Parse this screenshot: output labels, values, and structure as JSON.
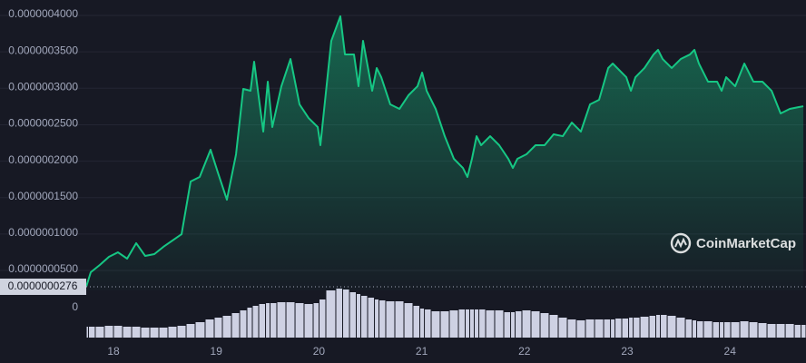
{
  "chart_data": {
    "type": "line",
    "watermark": "CoinMarketCap",
    "x": [
      17.735,
      17.779,
      17.867,
      17.956,
      18.044,
      18.133,
      18.221,
      18.309,
      18.398,
      18.486,
      18.574,
      18.663,
      18.751,
      18.839,
      18.945,
      19.016,
      19.104,
      19.193,
      19.263,
      19.334,
      19.369,
      19.458,
      19.502,
      19.546,
      19.634,
      19.723,
      19.811,
      19.899,
      19.988,
      20.014,
      20.12,
      20.208,
      20.253,
      20.341,
      20.385,
      20.429,
      20.518,
      20.562,
      20.606,
      20.694,
      20.783,
      20.871,
      20.959,
      21.004,
      21.048,
      21.136,
      21.224,
      21.313,
      21.401,
      21.445,
      21.489,
      21.534,
      21.578,
      21.666,
      21.754,
      21.843,
      21.887,
      21.931,
      22.019,
      22.108,
      22.196,
      22.284,
      22.373,
      22.461,
      22.549,
      22.638,
      22.726,
      22.815,
      22.859,
      22.903,
      22.991,
      23.036,
      23.08,
      23.168,
      23.256,
      23.3,
      23.345,
      23.433,
      23.521,
      23.61,
      23.654,
      23.698,
      23.786,
      23.875,
      23.919,
      23.963,
      24.051,
      24.14,
      24.228,
      24.316,
      24.405,
      24.493,
      24.582,
      24.67,
      24.714
    ],
    "series": [
      {
        "color": "#16c784",
        "values": [
          2.76e-08,
          4.75e-08,
          5.75e-08,
          6.87e-08,
          7.49e-08,
          6.62e-08,
          8.74e-08,
          6.99e-08,
          7.24e-08,
          8.24e-08,
          9.11e-08,
          9.98e-08,
          1.721e-07,
          1.783e-07,
          2.157e-07,
          1.845e-07,
          1.471e-07,
          2.094e-07,
          2.991e-07,
          2.966e-07,
          3.365e-07,
          2.406e-07,
          3.091e-07,
          2.468e-07,
          3.028e-07,
          3.402e-07,
          2.779e-07,
          2.592e-07,
          2.468e-07,
          2.219e-07,
          3.651e-07,
          3.988e-07,
          3.464e-07,
          3.464e-07,
          3.028e-07,
          3.651e-07,
          2.966e-07,
          3.278e-07,
          3.153e-07,
          2.779e-07,
          2.717e-07,
          2.904e-07,
          3.028e-07,
          3.215e-07,
          2.966e-07,
          2.717e-07,
          2.343e-07,
          2.032e-07,
          1.907e-07,
          1.783e-07,
          2.032e-07,
          2.343e-07,
          2.219e-07,
          2.343e-07,
          2.219e-07,
          2.032e-07,
          1.907e-07,
          2.032e-07,
          2.094e-07,
          2.219e-07,
          2.219e-07,
          2.368e-07,
          2.343e-07,
          2.53e-07,
          2.406e-07,
          2.779e-07,
          2.842e-07,
          3.278e-07,
          3.34e-07,
          3.278e-07,
          3.153e-07,
          2.966e-07,
          3.153e-07,
          3.278e-07,
          3.464e-07,
          3.527e-07,
          3.402e-07,
          3.278e-07,
          3.402e-07,
          3.464e-07,
          3.527e-07,
          3.34e-07,
          3.091e-07,
          3.091e-07,
          2.966e-07,
          3.153e-07,
          3.028e-07,
          3.34e-07,
          3.091e-07,
          3.091e-07,
          2.966e-07,
          2.655e-07,
          2.717e-07,
          2.742e-07,
          2.754e-07
        ]
      },
      {
        "type": "bar",
        "axis": "y2",
        "color": "#d8dbee",
        "values": [
          12,
          12,
          12,
          13,
          13,
          12,
          12,
          11,
          11,
          11,
          12,
          13,
          15,
          17,
          20,
          22,
          24,
          27,
          30,
          33,
          35,
          37,
          38,
          38,
          39,
          39,
          38,
          37,
          38,
          42,
          52,
          54,
          53,
          50,
          48,
          46,
          44,
          42,
          41,
          40,
          40,
          38,
          35,
          32,
          31,
          29,
          29,
          30,
          31,
          31,
          31,
          31,
          31,
          30,
          30,
          28,
          28,
          29,
          30,
          29,
          27,
          25,
          22,
          20,
          19,
          20,
          20,
          20,
          20,
          21,
          21,
          22,
          22,
          23,
          24,
          25,
          25,
          24,
          22,
          20,
          19,
          18,
          18,
          17,
          17,
          17,
          17,
          18,
          17,
          16,
          15,
          15,
          15,
          14,
          14
        ]
      }
    ],
    "price_marker": {
      "value": 2.76e-08,
      "label": "0.0000000276"
    },
    "xlim": [
      17.735,
      24.74
    ],
    "xticks": [
      18,
      19,
      20,
      21,
      22,
      23,
      24
    ],
    "ylim": [
      2.26e-08,
      4.212e-07
    ],
    "yticks": [
      {
        "value": 5e-08,
        "label": "0.0000000500"
      },
      {
        "value": 1e-07,
        "label": "0.0000001000"
      },
      {
        "value": 1.5e-07,
        "label": "0.0000001500"
      },
      {
        "value": 2e-07,
        "label": "0.0000002000"
      },
      {
        "value": 2.5e-07,
        "label": "0.0000002500"
      },
      {
        "value": 3e-07,
        "label": "0.0000003000"
      },
      {
        "value": 3.5e-07,
        "label": "0.0000003500"
      },
      {
        "value": 4e-07,
        "label": "0.0000004000"
      }
    ],
    "y2lim": [
      0,
      60
    ],
    "y2ticks": [
      0
    ],
    "grid": true
  }
}
